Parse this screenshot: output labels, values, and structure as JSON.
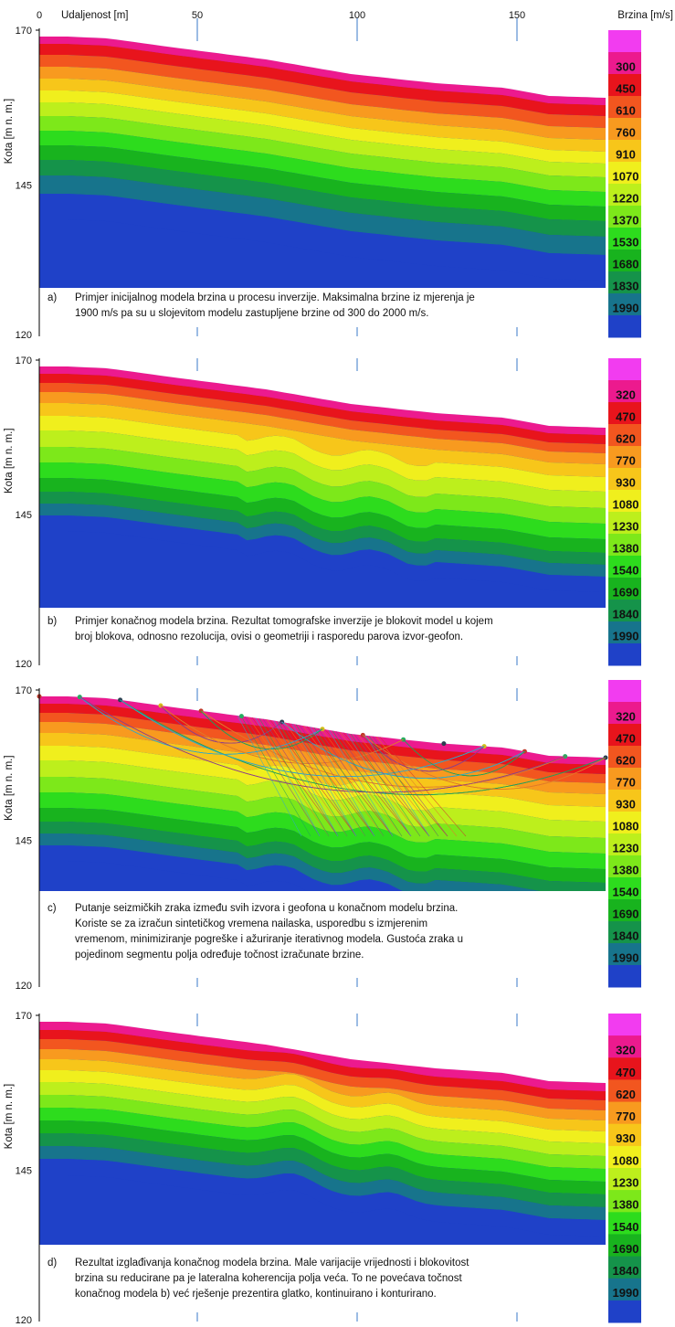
{
  "chart_data": [
    {
      "type": "heatmap",
      "panel": "a",
      "xlabel": "Udaljenost [m]",
      "ylabel": "Kota [m n. m.]",
      "colorbar_label": "Brzina [m/s]",
      "x_ticks": [
        "0",
        "50",
        "100",
        "150"
      ],
      "y_ticks": [
        "170",
        "145",
        "120"
      ],
      "xlim": [
        0,
        180
      ],
      "ylim": [
        120,
        170
      ],
      "legend_values": [
        "300",
        "450",
        "610",
        "760",
        "910",
        "1070",
        "1220",
        "1370",
        "1530",
        "1680",
        "1830",
        "1990"
      ],
      "caption_label": "a)",
      "caption_lines": [
        "Primjer inicijalnog modela brzina u procesu inverzije.  Maksimalna brzine iz mjerenja je",
        "1900 m/s pa su u slojevitom modelu zastupljene  brzine od 300 do 2000 m/s."
      ]
    },
    {
      "type": "heatmap",
      "panel": "b",
      "ylabel": "Kota [m n. m.]",
      "y_ticks": [
        "170",
        "145",
        "120"
      ],
      "xlim": [
        0,
        180
      ],
      "ylim": [
        120,
        170
      ],
      "legend_values": [
        "320",
        "470",
        "620",
        "770",
        "930",
        "1080",
        "1230",
        "1380",
        "1540",
        "1690",
        "1840",
        "1990"
      ],
      "caption_label": "b)",
      "caption_lines": [
        "Primjer konačnog modela brzina. Rezultat tomografske inverzije je blokovit model u kojem",
        "broj blokova, odnosno rezolucija, ovisi o geometriji i rasporedu parova izvor-geofon."
      ]
    },
    {
      "type": "heatmap",
      "panel": "c",
      "ylabel": "Kota [m n. m.]",
      "y_ticks": [
        "170",
        "145",
        "120"
      ],
      "xlim": [
        0,
        180
      ],
      "ylim": [
        120,
        170
      ],
      "legend_values": [
        "320",
        "470",
        "620",
        "770",
        "930",
        "1080",
        "1230",
        "1380",
        "1540",
        "1690",
        "1840",
        "1990"
      ],
      "caption_label": "c)",
      "caption_lines": [
        "Putanje seizmičkih zraka između svih izvora i geofona u konačnom modelu  brzina.",
        "Koriste se za izračun sintetičkog vremena nailaska, usporedbu s izmjerenim",
        "vremenom, minimiziranje pogreške i ažuriranje iterativnog modela. Gustoća zraka u",
        "pojedinom segmentu polja određuje točnost izračunate brzine."
      ]
    },
    {
      "type": "heatmap",
      "panel": "d",
      "ylabel": "Kota [m n. m.]",
      "y_ticks": [
        "170",
        "145",
        "120"
      ],
      "xlim": [
        0,
        180
      ],
      "ylim": [
        120,
        170
      ],
      "legend_values": [
        "320",
        "470",
        "620",
        "770",
        "930",
        "1080",
        "1230",
        "1380",
        "1540",
        "1690",
        "1840",
        "1990"
      ],
      "caption_label": "d)",
      "caption_lines": [
        "Rezultat izglađivanja konačnog modela brzina. Male varijacije vrijednosti i blokovitost",
        "brzina su reducirane pa je lateralna koherencija polja veća. To ne povećava točnost",
        "konačnog modela b) već rješenje prezentira glatko, kontinuirano i konturirano."
      ]
    }
  ],
  "palette": [
    "#f23cf0",
    "#ec1a8e",
    "#e8141c",
    "#f2561f",
    "#f89a1f",
    "#f7c61a",
    "#f0ef1d",
    "#bdef1c",
    "#7de81a",
    "#2ddc1d",
    "#18b31e",
    "#15934a",
    "#17748c",
    "#1f41c8"
  ]
}
